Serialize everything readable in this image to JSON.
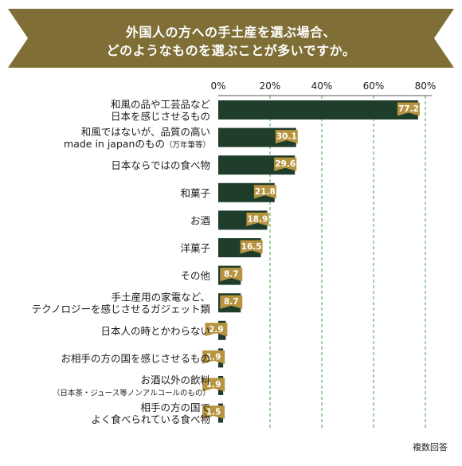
{
  "title": {
    "line1": "外国人の方への手土産を選ぶ場合、",
    "line2": "どのようなものを選ぶことが多いですか。"
  },
  "footnote": "複数回答",
  "colors": {
    "banner": "#7f6f36",
    "bar": "#1f3d2b",
    "label_tag": "#b69440",
    "grid": "#43a047"
  },
  "chart_data": {
    "type": "bar",
    "orientation": "horizontal",
    "xlim": [
      0,
      80
    ],
    "ticks": [
      "0%",
      "20%",
      "40%",
      "60%",
      "80%"
    ],
    "tick_values": [
      0,
      20,
      40,
      60,
      80
    ],
    "grid": "dashed vertical",
    "categories": [
      {
        "lines": [
          "和風の品や工芸品など",
          "日本を感じさせるもの"
        ],
        "value": 77.2
      },
      {
        "lines": [
          "和風ではないが、品質の高い",
          "made in japanのもの"
        ],
        "note": "（万年筆等）",
        "value": 30.1
      },
      {
        "lines": [
          "日本ならではの食べ物"
        ],
        "value": 29.6
      },
      {
        "lines": [
          "和菓子"
        ],
        "value": 21.8
      },
      {
        "lines": [
          "お酒"
        ],
        "value": 18.9
      },
      {
        "lines": [
          "洋菓子"
        ],
        "value": 16.5
      },
      {
        "lines": [
          "その他"
        ],
        "value": 8.7
      },
      {
        "lines": [
          "手土産用の家電など、",
          "テクノロジーを感じさせるガジェット類"
        ],
        "value": 8.7
      },
      {
        "lines": [
          "日本人の時とかわらない"
        ],
        "value": 2.9
      },
      {
        "lines": [
          "お相手の方の国を感じさせるもの"
        ],
        "value": 1.9
      },
      {
        "lines": [
          "お酒以外の飲料",
          "（日本茶・ジュース等ノンアルコールのもの）"
        ],
        "value": 1.9,
        "small_second": true
      },
      {
        "lines": [
          "相手の方の国で",
          "よく食べられている食べ物"
        ],
        "value": 1.5
      }
    ],
    "value_labels": [
      "77.2",
      "30.1",
      "29.6",
      "21.8",
      "18.9",
      "16.5",
      "8.7",
      "8.7",
      "2.9",
      "1.9",
      "1.9",
      "1.5"
    ]
  }
}
